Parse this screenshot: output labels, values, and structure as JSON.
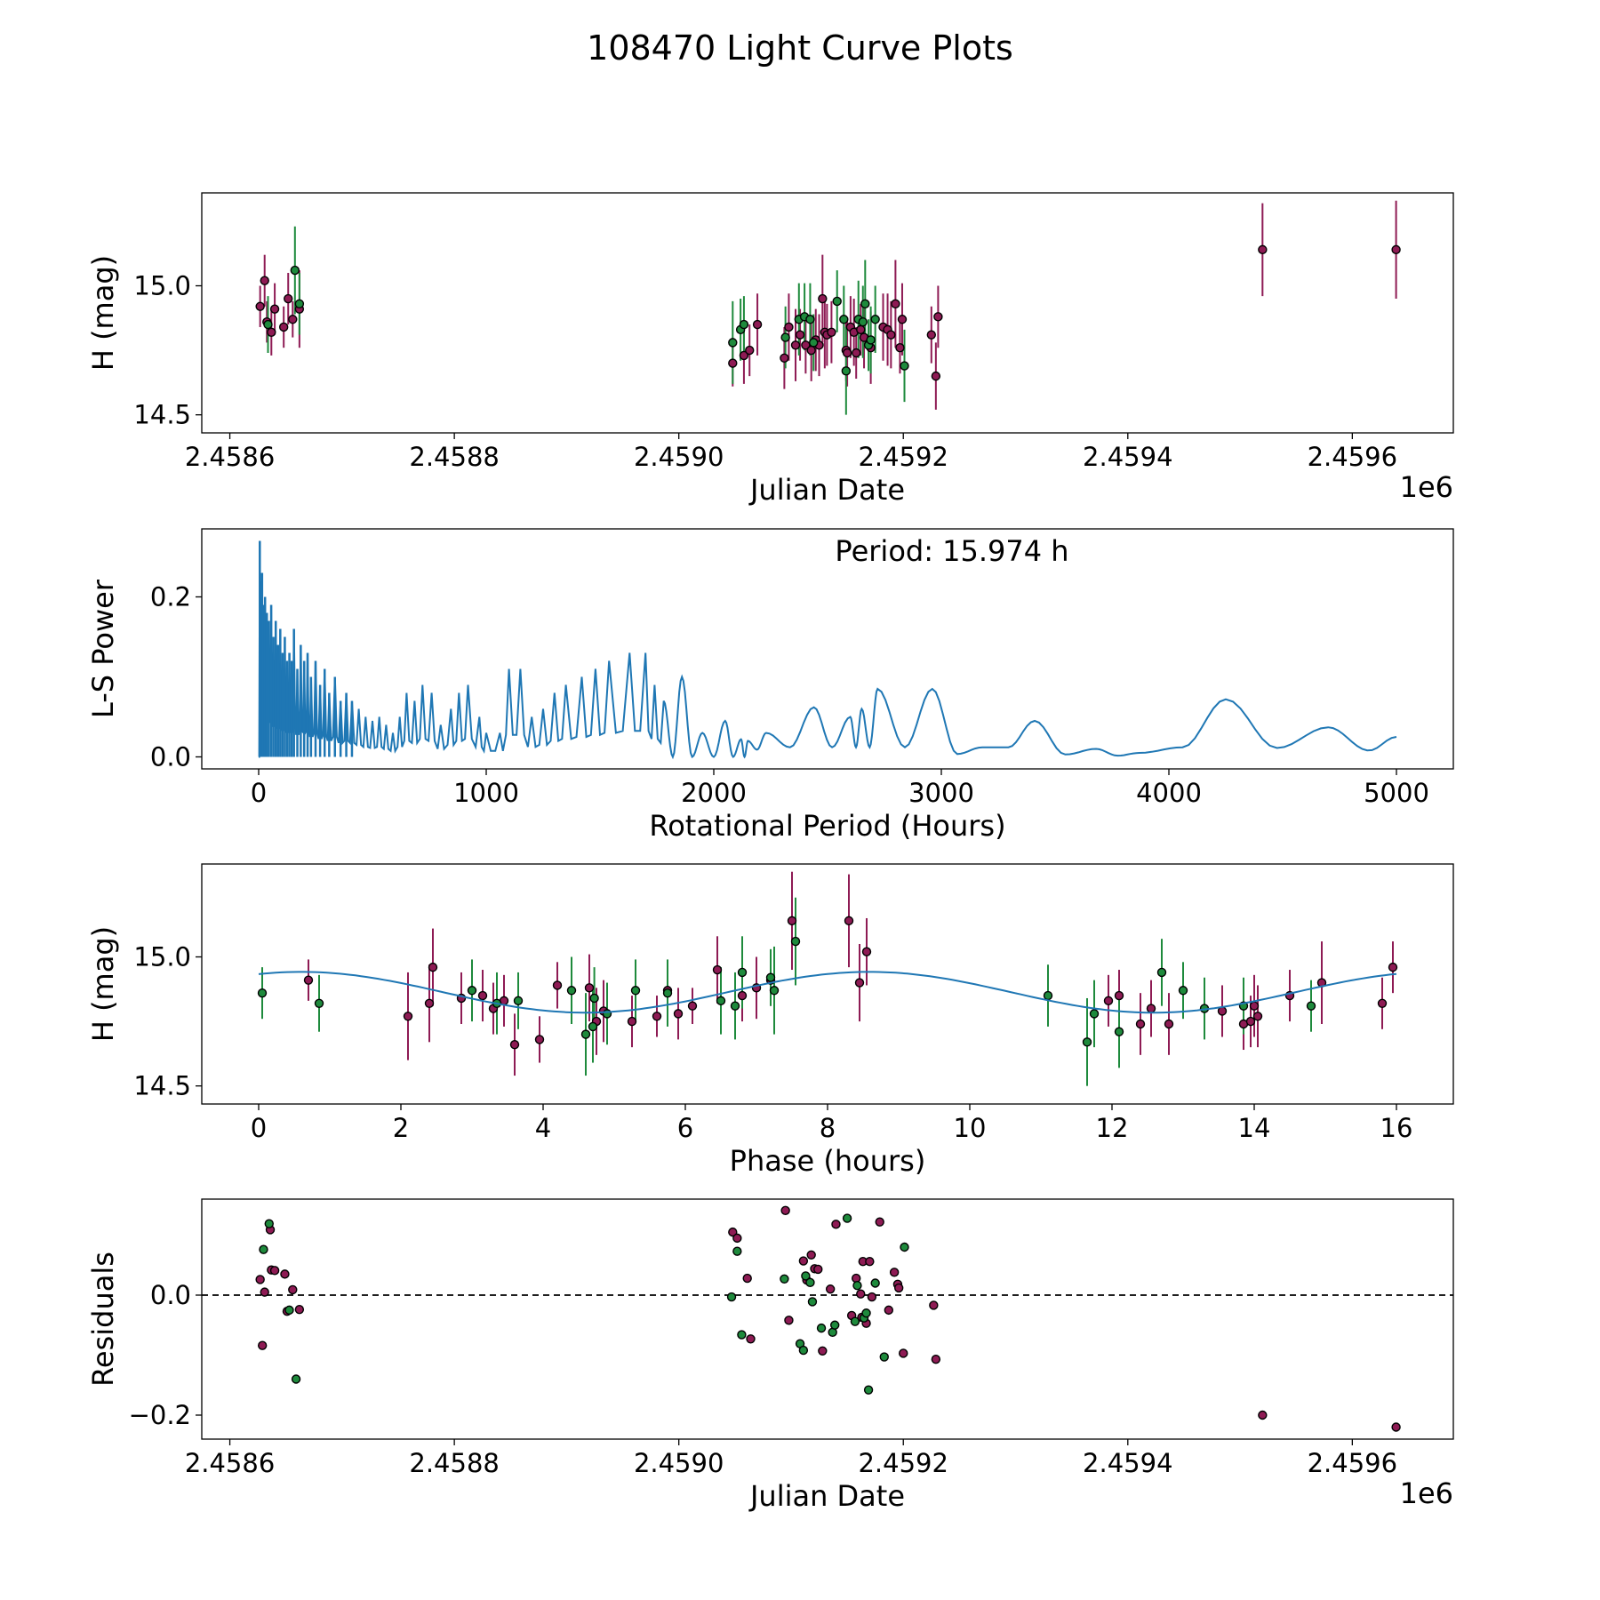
{
  "figure": {
    "title": "108470 Light Curve Plots",
    "colors": {
      "green": "#1e8a3c",
      "purple": "#8e1b54",
      "line": "#1f77b4",
      "marker_edge": "#000000"
    }
  },
  "chart_data": [
    {
      "id": "lightcurve",
      "type": "scatter",
      "title": "",
      "xlabel": "Julian Date",
      "ylabel": "H (mag)",
      "x_offset_label": "1e6",
      "xlim": [
        2458575,
        2459690
      ],
      "ylim": [
        14.43,
        15.36
      ],
      "y_inverted": false,
      "xticks": [
        2458600,
        2458800,
        2459000,
        2459200,
        2459400,
        2459600
      ],
      "xtick_labels": [
        "2.4586",
        "2.4588",
        "2.4590",
        "2.4592",
        "2.4594",
        "2.4596"
      ],
      "yticks": [
        14.5,
        15.0
      ],
      "ytick_labels": [
        "14.5",
        "15.0"
      ],
      "series": [
        {
          "name": "purple",
          "color": "#8e1b54",
          "x": [
            2458627,
            2458631,
            2458633,
            2458637,
            2458640,
            2458648,
            2458652,
            2458656,
            2458662,
            2459048,
            2459058,
            2459063,
            2459070,
            2459094,
            2459098,
            2459104,
            2459108,
            2459113,
            2459118,
            2459122,
            2459125,
            2459128,
            2459130,
            2459132,
            2459136,
            2459149,
            2459150,
            2459153,
            2459156,
            2459158,
            2459162,
            2459165,
            2459171,
            2459182,
            2459186,
            2459189,
            2459193,
            2459197,
            2459199,
            2459225,
            2459229,
            2459231,
            2459520,
            2459639
          ],
          "y": [
            14.92,
            15.02,
            14.86,
            14.82,
            14.91,
            14.84,
            14.95,
            14.87,
            14.91,
            14.7,
            14.73,
            14.75,
            14.85,
            14.72,
            14.84,
            14.77,
            14.81,
            14.77,
            14.75,
            14.79,
            14.77,
            14.95,
            14.82,
            14.81,
            14.82,
            14.75,
            14.74,
            14.84,
            14.82,
            14.74,
            14.83,
            14.8,
            14.76,
            14.84,
            14.83,
            14.81,
            14.93,
            14.76,
            14.87,
            14.81,
            14.65,
            14.88,
            15.14,
            15.14
          ],
          "yerr": [
            0.08,
            0.1,
            0.08,
            0.09,
            0.1,
            0.08,
            0.1,
            0.07,
            0.15,
            0.09,
            0.11,
            0.1,
            0.12,
            0.12,
            0.13,
            0.14,
            0.1,
            0.11,
            0.12,
            0.12,
            0.12,
            0.17,
            0.14,
            0.12,
            0.12,
            0.12,
            0.13,
            0.12,
            0.13,
            0.1,
            0.1,
            0.12,
            0.14,
            0.13,
            0.14,
            0.13,
            0.17,
            0.1,
            0.14,
            0.11,
            0.13,
            0.12,
            0.18,
            0.19
          ]
        },
        {
          "name": "green",
          "color": "#1e8a3c",
          "x": [
            2458634,
            2458658,
            2458662,
            2459048,
            2459055,
            2459058,
            2459095,
            2459107,
            2459112,
            2459117,
            2459120,
            2459141,
            2459147,
            2459149,
            2459160,
            2459164,
            2459166,
            2459169,
            2459171,
            2459175,
            2459201
          ],
          "y": [
            14.85,
            15.06,
            14.93,
            14.78,
            14.83,
            14.85,
            14.8,
            14.87,
            14.88,
            14.87,
            14.78,
            14.94,
            14.87,
            14.67,
            14.87,
            14.86,
            14.93,
            14.77,
            14.79,
            14.87,
            14.69
          ],
          "yerr": [
            0.11,
            0.17,
            0.12,
            0.16,
            0.12,
            0.11,
            0.12,
            0.14,
            0.13,
            0.14,
            0.11,
            0.12,
            0.13,
            0.17,
            0.15,
            0.14,
            0.17,
            0.1,
            0.13,
            0.13,
            0.14
          ]
        }
      ]
    },
    {
      "id": "periodogram",
      "type": "line",
      "title": "",
      "annotation": "Period: 15.974 h",
      "xlabel": "Rotational Period (Hours)",
      "ylabel": "L-S Power",
      "xlim": [
        -250,
        5250
      ],
      "ylim": [
        -0.015,
        0.285
      ],
      "xticks": [
        0,
        1000,
        2000,
        3000,
        4000,
        5000
      ],
      "xtick_labels": [
        "0",
        "1000",
        "2000",
        "3000",
        "4000",
        "5000"
      ],
      "yticks": [
        0.0,
        0.2
      ],
      "ytick_labels": [
        "0.0",
        "0.2"
      ],
      "series": [
        {
          "name": "L-S Power",
          "color": "#1f77b4",
          "peaks_x": [
            5,
            10,
            15,
            20,
            28,
            36,
            45,
            55,
            65,
            75,
            85,
            95,
            105,
            115,
            125,
            135,
            145,
            155,
            170,
            185,
            200,
            215,
            230,
            250,
            270,
            290,
            310,
            335,
            360,
            385,
            410,
            440,
            470,
            500,
            530,
            560,
            590,
            620,
            650,
            685,
            720,
            760,
            800,
            845,
            880,
            920,
            970,
            1000,
            1060,
            1100,
            1150,
            1200,
            1250,
            1300,
            1350,
            1420,
            1480,
            1540,
            1630,
            1700,
            1740,
            1780,
            1860,
            1950,
            2050,
            2120,
            2150,
            2230,
            2440,
            2600,
            2650,
            2720,
            2960,
            3180,
            3410,
            3680,
            3870,
            4250,
            4700
          ],
          "peaks_y": [
            0.27,
            0.22,
            0.23,
            0.19,
            0.2,
            0.18,
            0.17,
            0.19,
            0.15,
            0.17,
            0.14,
            0.16,
            0.13,
            0.15,
            0.12,
            0.13,
            0.12,
            0.16,
            0.11,
            0.14,
            0.12,
            0.13,
            0.1,
            0.12,
            0.09,
            0.11,
            0.08,
            0.1,
            0.07,
            0.08,
            0.07,
            0.06,
            0.05,
            0.045,
            0.05,
            0.04,
            0.03,
            0.05,
            0.08,
            0.07,
            0.09,
            0.08,
            0.04,
            0.06,
            0.08,
            0.09,
            0.05,
            0.03,
            0.03,
            0.11,
            0.11,
            0.05,
            0.06,
            0.08,
            0.09,
            0.1,
            0.11,
            0.12,
            0.13,
            0.13,
            0.09,
            0.07,
            0.1,
            0.03,
            0.045,
            0.022,
            0.02,
            0.03,
            0.062,
            0.05,
            0.06,
            0.085,
            0.085,
            0.012,
            0.045,
            0.01,
            0.005,
            0.072,
            0.037
          ],
          "end_x": 5000,
          "end_y": 0.025
        }
      ]
    },
    {
      "id": "phase",
      "type": "scatter",
      "title": "",
      "xlabel": "Phase (hours)",
      "ylabel": "H (mag)",
      "xlim": [
        -0.8,
        16.8
      ],
      "ylim": [
        14.43,
        15.36
      ],
      "xticks": [
        0,
        2,
        4,
        6,
        8,
        10,
        12,
        14,
        16
      ],
      "xtick_labels": [
        "0",
        "2",
        "4",
        "6",
        "8",
        "10",
        "12",
        "14",
        "16"
      ],
      "yticks": [
        14.5,
        15.0
      ],
      "ytick_labels": [
        "14.5",
        "15.0"
      ],
      "model": {
        "type": "sinusoid",
        "mean": 14.863,
        "amplitude": 0.079,
        "peak_phase": 0.6,
        "period": 7.987,
        "color": "#1f77b4"
      },
      "series": [
        {
          "name": "purple",
          "color": "#8e1b54",
          "x": [
            0.7,
            2.1,
            2.4,
            2.45,
            2.85,
            3.15,
            3.3,
            3.45,
            3.6,
            3.95,
            4.2,
            4.65,
            4.75,
            4.85,
            5.25,
            5.6,
            5.75,
            5.9,
            6.1,
            6.45,
            6.8,
            7.0,
            7.2,
            7.5,
            8.3,
            8.45,
            8.55,
            11.95,
            12.1,
            12.4,
            12.55,
            12.8,
            13.55,
            13.85,
            13.95,
            14.0,
            14.05,
            14.5,
            14.95,
            15.8,
            15.95
          ],
          "y": [
            14.91,
            14.77,
            14.82,
            14.96,
            14.84,
            14.85,
            14.8,
            14.83,
            14.66,
            14.68,
            14.89,
            14.88,
            14.75,
            14.79,
            14.75,
            14.77,
            14.87,
            14.78,
            14.81,
            14.95,
            14.85,
            14.88,
            14.91,
            15.14,
            15.14,
            14.9,
            15.02,
            14.83,
            14.85,
            14.74,
            14.8,
            14.74,
            14.79,
            14.74,
            14.75,
            14.81,
            14.77,
            14.85,
            14.9,
            14.82,
            14.96
          ],
          "yerr": [
            0.08,
            0.17,
            0.15,
            0.15,
            0.1,
            0.1,
            0.1,
            0.1,
            0.12,
            0.09,
            0.09,
            0.13,
            0.13,
            0.12,
            0.1,
            0.08,
            0.09,
            0.1,
            0.07,
            0.13,
            0.1,
            0.12,
            0.1,
            0.19,
            0.18,
            0.15,
            0.13,
            0.1,
            0.1,
            0.12,
            0.11,
            0.12,
            0.1,
            0.1,
            0.1,
            0.12,
            0.12,
            0.1,
            0.16,
            0.1,
            0.1
          ]
        },
        {
          "name": "green",
          "color": "#1e8a3c",
          "x": [
            0.05,
            0.85,
            3.0,
            3.35,
            3.65,
            4.4,
            4.6,
            4.7,
            4.72,
            4.9,
            5.3,
            5.75,
            6.5,
            6.7,
            6.8,
            7.2,
            7.25,
            7.55,
            11.1,
            11.65,
            11.75,
            12.1,
            12.7,
            13.0,
            13.3,
            13.85,
            14.8
          ],
          "y": [
            14.86,
            14.82,
            14.87,
            14.82,
            14.83,
            14.87,
            14.7,
            14.73,
            14.84,
            14.78,
            14.87,
            14.86,
            14.83,
            14.81,
            14.94,
            14.92,
            14.87,
            15.06,
            14.85,
            14.67,
            14.78,
            14.71,
            14.94,
            14.87,
            14.8,
            14.81,
            14.81
          ],
          "yerr": [
            0.1,
            0.11,
            0.12,
            0.12,
            0.11,
            0.13,
            0.16,
            0.14,
            0.12,
            0.12,
            0.12,
            0.13,
            0.13,
            0.13,
            0.14,
            0.11,
            0.17,
            0.17,
            0.12,
            0.17,
            0.13,
            0.14,
            0.13,
            0.11,
            0.12,
            0.11,
            0.1
          ]
        }
      ]
    },
    {
      "id": "residuals",
      "type": "scatter",
      "title": "",
      "xlabel": "Julian Date",
      "ylabel": "Residuals",
      "x_offset_label": "1e6",
      "xlim": [
        2458575,
        2459690
      ],
      "ylim": [
        -0.24,
        0.16
      ],
      "xticks": [
        2458600,
        2458800,
        2459000,
        2459200,
        2459400,
        2459600
      ],
      "xtick_labels": [
        "2.4586",
        "2.4588",
        "2.4590",
        "2.4592",
        "2.4594",
        "2.4596"
      ],
      "yticks": [
        -0.2,
        0.0
      ],
      "ytick_labels": [
        "−0.2",
        "0.0"
      ],
      "reference_line_y": 0.0,
      "series": [
        {
          "name": "purple",
          "color": "#8e1b54",
          "x": [
            2458627,
            2458629,
            2458631,
            2458636,
            2458637,
            2458640,
            2458649,
            2458651,
            2458656,
            2458662,
            2459048,
            2459052,
            2459061,
            2459064,
            2459095,
            2459098,
            2459111,
            2459114,
            2459118,
            2459121,
            2459124,
            2459128,
            2459135,
            2459140,
            2459154,
            2459158,
            2459162,
            2459163,
            2459164,
            2459167,
            2459170,
            2459172,
            2459179,
            2459187,
            2459192,
            2459195,
            2459196,
            2459200,
            2459227,
            2459229,
            2459520,
            2459639
          ],
          "y": [
            0.026,
            -0.084,
            0.005,
            0.109,
            0.042,
            0.041,
            0.035,
            -0.027,
            0.009,
            -0.024,
            0.105,
            0.095,
            0.028,
            -0.073,
            0.141,
            -0.042,
            0.057,
            0.025,
            0.067,
            0.044,
            0.043,
            -0.093,
            0.01,
            0.118,
            -0.034,
            0.028,
            0.002,
            -0.037,
            0.056,
            -0.047,
            0.056,
            -0.003,
            0.122,
            -0.025,
            0.038,
            0.018,
            0.012,
            -0.097,
            -0.017,
            -0.107,
            -0.2,
            -0.22
          ],
          "yerr": []
        },
        {
          "name": "green",
          "color": "#1e8a3c",
          "x": [
            2458630,
            2458635,
            2458653,
            2458659,
            2459047,
            2459052,
            2459056,
            2459094,
            2459108,
            2459111,
            2459113,
            2459117,
            2459119,
            2459127,
            2459137,
            2459139,
            2459150,
            2459157,
            2459159,
            2459165,
            2459167,
            2459169,
            2459175,
            2459183,
            2459201
          ],
          "y": [
            0.076,
            0.119,
            -0.025,
            -0.14,
            -0.003,
            0.073,
            -0.066,
            0.027,
            -0.081,
            -0.092,
            0.032,
            0.021,
            -0.011,
            -0.055,
            -0.062,
            -0.05,
            0.128,
            -0.044,
            0.016,
            -0.038,
            -0.03,
            -0.158,
            0.02,
            -0.103,
            0.08
          ],
          "yerr": []
        }
      ]
    }
  ]
}
